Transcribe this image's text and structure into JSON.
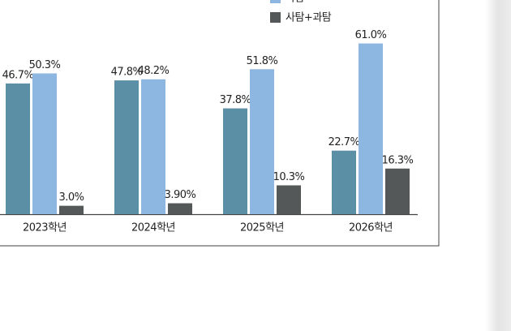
{
  "chart_data": {
    "type": "bar",
    "categories": [
      "2023학년",
      "2024학년",
      "2025학년",
      "2026학년"
    ],
    "series": [
      {
        "color": "#5a8fa6",
        "values": [
          46.7,
          47.8,
          37.8,
          22.7
        ],
        "value_labels": [
          "46.7%",
          "47.8%",
          "37.8%",
          "22.7%"
        ]
      },
      {
        "name": "사탐",
        "color": "#8db7e0",
        "values": [
          50.3,
          48.2,
          51.8,
          61.0
        ],
        "value_labels": [
          "50.3%",
          "48.2%",
          "51.8%",
          "61.0%"
        ]
      },
      {
        "name": "사탐+과탐",
        "color": "#545858",
        "values": [
          3.0,
          3.9,
          10.3,
          16.3
        ],
        "value_labels": [
          "3.0%",
          "3.90%",
          "10.3%",
          "16.3%"
        ]
      }
    ]
  }
}
